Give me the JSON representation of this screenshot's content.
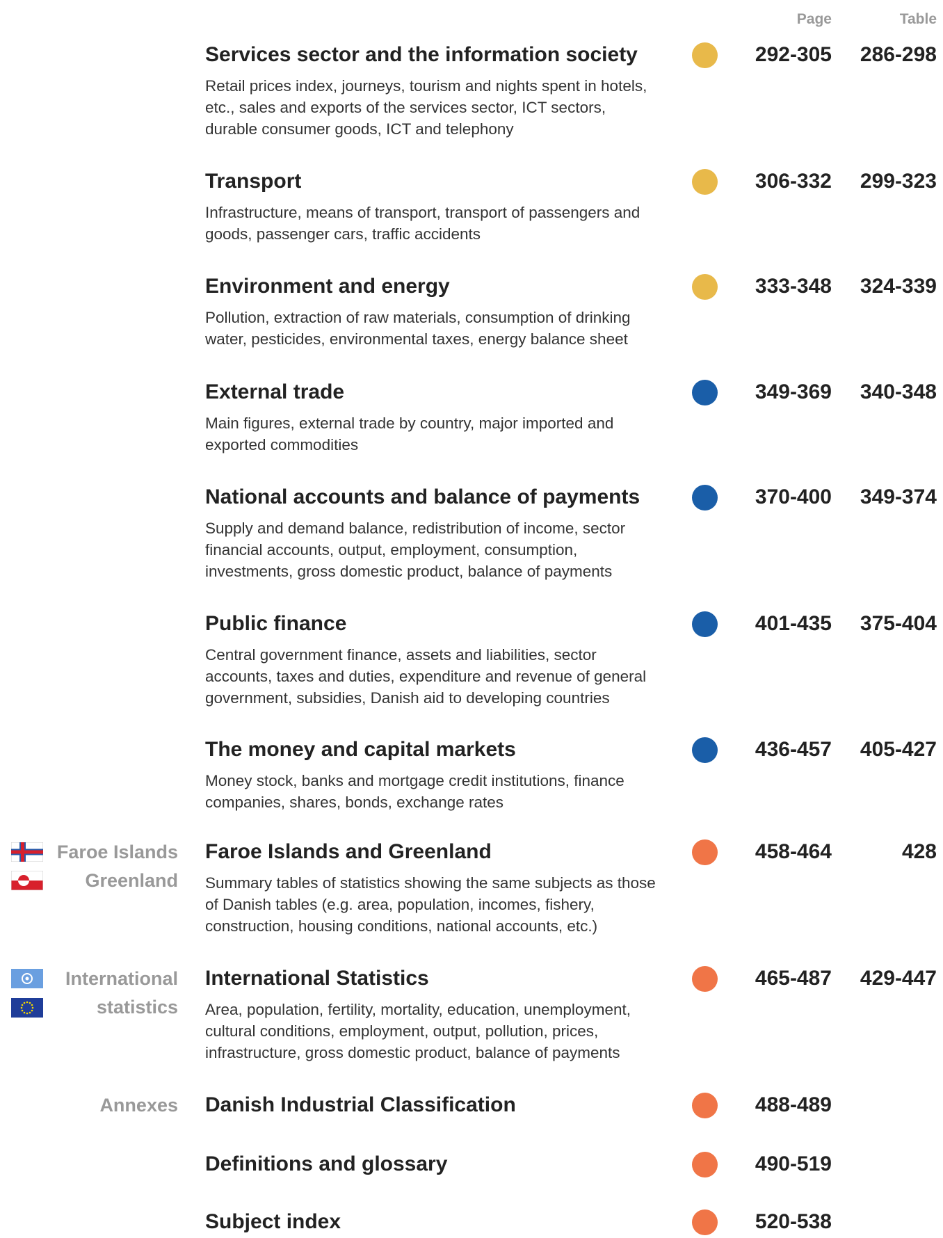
{
  "header": {
    "page": "Page",
    "table": "Table"
  },
  "side_labels": [
    {
      "lines": [
        "Faroe Islands",
        "Greenland"
      ]
    },
    {
      "lines": [
        "International",
        "statistics"
      ]
    },
    {
      "lines": [
        "Annexes"
      ]
    }
  ],
  "items": [
    {
      "title": "Services sector and the information society",
      "description": [
        "Retail prices index, journeys, tourism and nights spent in hotels,",
        "etc., sales and exports of the services sector, ICT sectors,",
        "durable consumer goods, ICT and telephony"
      ],
      "color": "#e8b94a",
      "page": "292-305",
      "table": "286-298"
    },
    {
      "title": "Transport",
      "description": [
        "Infrastructure, means of transport, transport of passengers and",
        "goods, passenger cars, traffic accidents"
      ],
      "color": "#e8b94a",
      "page": "306-332",
      "table": "299-323"
    },
    {
      "title": "Environment and energy",
      "description": [
        "Pollution, extraction of raw materials, consumption of drinking",
        "water, pesticides, environmental taxes, energy balance sheet"
      ],
      "color": "#e8b94a",
      "page": "333-348",
      "table": "324-339"
    },
    {
      "title": "External trade",
      "description": [
        "Main figures, external trade by country, major imported and",
        "exported commodities"
      ],
      "color": "#1a5ea8",
      "page": "349-369",
      "table": "340-348"
    },
    {
      "title": "National accounts and balance of payments",
      "description": [
        "Supply and demand balance, redistribution of income, sector",
        "financial accounts, output, employment, consumption,",
        "investments, gross domestic product, balance of payments"
      ],
      "color": "#1a5ea8",
      "page": "370-400",
      "table": "349-374"
    },
    {
      "title": "Public finance",
      "description": [
        "Central government finance, assets and liabilities, sector",
        "accounts, taxes and duties, expenditure and revenue of general",
        "government, subsidies, Danish aid to developing countries"
      ],
      "color": "#1a5ea8",
      "page": "401-435",
      "table": "375-404"
    },
    {
      "title": "The money and capital markets",
      "description": [
        "Money stock, banks and mortgage credit institutions, finance",
        "companies, shares, bonds, exchange rates"
      ],
      "color": "#1a5ea8",
      "page": "436-457",
      "table": "405-427"
    },
    {
      "title": "Faroe Islands and Greenland",
      "description": [
        "Summary tables of statistics showing the same subjects as those",
        "of Danish tables (e.g. area, population, incomes, fishery,",
        "construction, housing conditions, national accounts, etc.)"
      ],
      "color": "#f07547",
      "page": "458-464",
      "table": "428"
    },
    {
      "title": "International Statistics",
      "description": [
        "Area, population, fertility, mortality, education, unemployment,",
        "cultural conditions, employment, output, pollution, prices,",
        "infrastructure, gross domestic product, balance of payments"
      ],
      "color": "#f07547",
      "page": "465-487",
      "table": "429-447"
    },
    {
      "title": "Danish Industrial Classification",
      "description": [],
      "color": "#f07547",
      "page": "488-489"
    },
    {
      "title": "Definitions and glossary",
      "description": [],
      "color": "#f07547",
      "page": "490-519"
    },
    {
      "title": "Subject index",
      "description": [],
      "color": "#f07547",
      "page": "520-538"
    }
  ]
}
